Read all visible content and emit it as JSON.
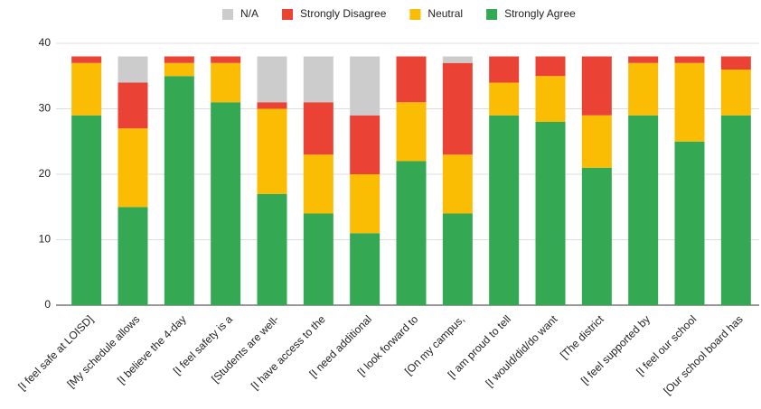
{
  "chart_data": {
    "type": "stacked_bar",
    "categories": [
      "[I feel safe at LOISD]",
      "[My schedule allows",
      "[I believe the 4-day",
      "[I feel safety is a",
      "[Students are well-",
      "[I have access to the",
      "[I need additional",
      "[I look forward to",
      "[On my campus,",
      "[I am proud to tell",
      "[I would/did/do want",
      "[The district",
      "[I feel supported by",
      "[I feel our school",
      "[Our school board has"
    ],
    "series": [
      {
        "name": "N/A",
        "color": "#cccccc",
        "values": [
          0,
          4,
          0,
          0,
          7,
          7,
          9,
          0,
          1,
          0,
          0,
          0,
          0,
          0,
          0
        ]
      },
      {
        "name": "Strongly Disagree",
        "color": "#ea4335",
        "values": [
          1,
          7,
          1,
          1,
          1,
          8,
          9,
          7,
          14,
          4,
          3,
          9,
          1,
          1,
          2
        ]
      },
      {
        "name": "Neutral",
        "color": "#fbbc04",
        "values": [
          8,
          12,
          2,
          6,
          13,
          9,
          9,
          9,
          9,
          5,
          7,
          8,
          8,
          12,
          7
        ]
      },
      {
        "name": "Strongly Agree",
        "color": "#34a853",
        "values": [
          29,
          15,
          35,
          31,
          17,
          14,
          11,
          22,
          14,
          29,
          28,
          21,
          29,
          25,
          29
        ]
      }
    ],
    "ylim": [
      0,
      40
    ],
    "yticks": [
      0,
      10,
      20,
      30,
      40
    ],
    "grid": true,
    "legend": "top"
  }
}
